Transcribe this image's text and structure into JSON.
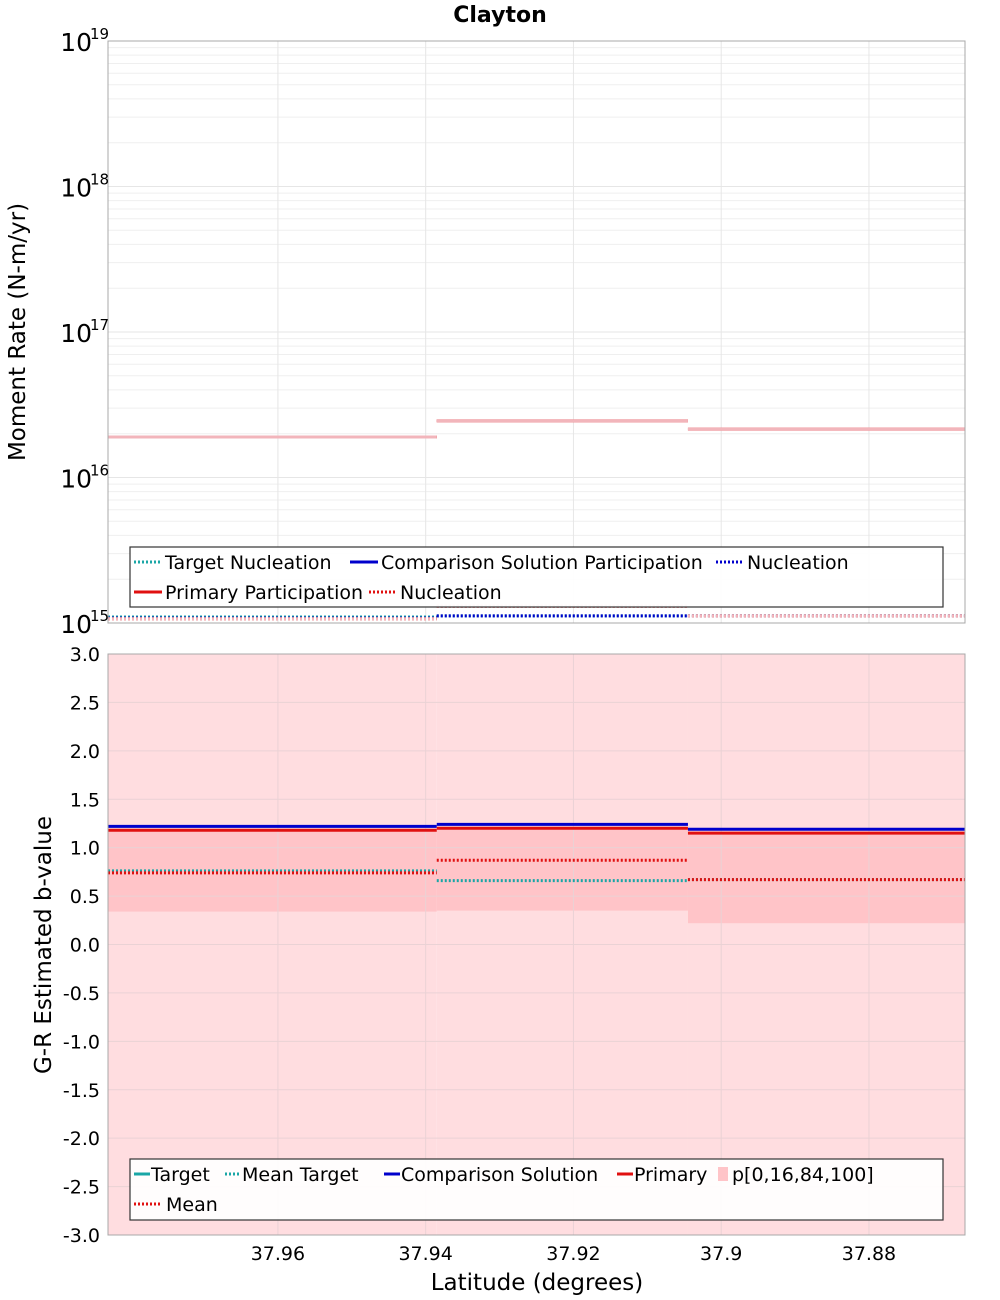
{
  "title": "Clayton",
  "colors": {
    "target": "#1aa6a6",
    "comparison": "#0000cc",
    "primary": "#e01010",
    "primary_light": "#f2b5bb",
    "band_outer": "#ffdde0",
    "band_inner": "#ffc4c8",
    "grid": "#e6e6e6",
    "frame": "#a8a8a8"
  },
  "chart_data": [
    {
      "type": "line",
      "panel": "top",
      "drawstyle": "steps",
      "title": "Clayton",
      "ylabel": "Moment Rate (N-m/yr)",
      "yscale": "log",
      "ylim": [
        1000000000000000.0,
        1e+19
      ],
      "xlim": [
        37.983,
        37.867
      ],
      "x_inverted": true,
      "y_ticks": [
        {
          "base": "10",
          "exp": "15",
          "value": 1000000000000000.0
        },
        {
          "base": "10",
          "exp": "16",
          "value": 1e+16
        },
        {
          "base": "10",
          "exp": "17",
          "value": 1e+17
        },
        {
          "base": "10",
          "exp": "18",
          "value": 1e+18
        },
        {
          "base": "10",
          "exp": "19",
          "value": 1e+19
        }
      ],
      "grid": true,
      "legend": {
        "position": "bottom",
        "rows": [
          [
            {
              "label": "Target Nucleation",
              "style": "target-dotted"
            },
            {
              "label": "Comparison Solution Participation",
              "style": "comparison-solid"
            },
            {
              "label": "Nucleation",
              "style": "comparison-dotted"
            }
          ],
          [
            {
              "label": "Primary Participation",
              "style": "primary-solid"
            },
            {
              "label": "Nucleation",
              "style": "primary-dotted"
            }
          ]
        ]
      },
      "bins": [
        [
          37.983,
          37.9385
        ],
        [
          37.9385,
          37.9045
        ],
        [
          37.9045,
          37.867
        ]
      ],
      "series": [
        {
          "name": "Primary Participation",
          "style": "primary-solid",
          "values": [
            1.9e+16,
            2.45e+16,
            2.15e+16
          ]
        },
        {
          "name": "Primary Participation (comparison)",
          "style": "primary-light-solid",
          "values": [
            1.9e+16,
            2.45e+16,
            2.15e+16
          ]
        },
        {
          "name": "Target Nucleation",
          "style": "target-dotted",
          "values": [
            1100000000000000.0,
            1120000000000000.0,
            1120000000000000.0
          ]
        },
        {
          "name": "Comparison Nucleation",
          "style": "comparison-dotted",
          "values": [
            1080000000000000.0,
            1120000000000000.0,
            1120000000000000.0
          ]
        },
        {
          "name": "Nucleation",
          "style": "primary-dotted",
          "values": [
            1070000000000000.0,
            1300000000000000.0,
            1120000000000000.0
          ]
        },
        {
          "name": "Nucleation (comparison)",
          "style": "primary-light-dotted",
          "values": [
            1070000000000000.0,
            1300000000000000.0,
            1120000000000000.0
          ]
        }
      ]
    },
    {
      "type": "line",
      "panel": "bottom",
      "drawstyle": "steps",
      "xlabel": "Latitude (degrees)",
      "ylabel": "G-R Estimated b-value",
      "ylim": [
        -3.0,
        3.0
      ],
      "xlim": [
        37.983,
        37.867
      ],
      "x_inverted": true,
      "y_ticks": [
        {
          "label": "3.0",
          "value": 3.0
        },
        {
          "label": "2.5",
          "value": 2.5
        },
        {
          "label": "2.0",
          "value": 2.0
        },
        {
          "label": "1.5",
          "value": 1.5
        },
        {
          "label": "1.0",
          "value": 1.0
        },
        {
          "label": "0.5",
          "value": 0.5
        },
        {
          "label": "0.0",
          "value": 0.0
        },
        {
          "label": "-0.5",
          "value": -0.5
        },
        {
          "label": "-1.0",
          "value": -1.0
        },
        {
          "label": "-1.5",
          "value": -1.5
        },
        {
          "label": "-2.0",
          "value": -2.0
        },
        {
          "label": "-2.5",
          "value": -2.5
        },
        {
          "label": "-3.0",
          "value": -3.0
        }
      ],
      "x_ticks": [
        {
          "label": "37.96",
          "value": 37.96
        },
        {
          "label": "37.94",
          "value": 37.94
        },
        {
          "label": "37.92",
          "value": 37.92
        },
        {
          "label": "37.9",
          "value": 37.9
        },
        {
          "label": "37.88",
          "value": 37.88
        }
      ],
      "grid": true,
      "legend": {
        "position": "bottom",
        "rows": [
          [
            {
              "label": "Target",
              "style": "target-solid"
            },
            {
              "label": "Mean Target",
              "style": "target-dotted"
            },
            {
              "label": "Comparison Solution",
              "style": "comparison-solid"
            },
            {
              "label": "Primary",
              "style": "primary-solid"
            },
            {
              "label": "p[0,16,84,100]",
              "style": "band-patch"
            }
          ],
          [
            {
              "label": "Mean",
              "style": "primary-dotted"
            }
          ]
        ]
      },
      "bins": [
        [
          37.983,
          37.9385
        ],
        [
          37.9385,
          37.9045
        ],
        [
          37.9045,
          37.867
        ]
      ],
      "bands": [
        {
          "name": "p0-p100",
          "style": "band-outer",
          "low": [
            -3.0,
            -3.0,
            -3.0
          ],
          "high": [
            3.0,
            3.0,
            3.0
          ]
        },
        {
          "name": "p16-p84",
          "style": "band-inner",
          "low": [
            0.34,
            0.35,
            0.22
          ],
          "high": [
            1.18,
            1.2,
            1.14
          ]
        }
      ],
      "series": [
        {
          "name": "Comparison Solution",
          "style": "comparison-solid",
          "values": [
            1.22,
            1.24,
            1.19
          ]
        },
        {
          "name": "Primary",
          "style": "primary-solid",
          "values": [
            1.18,
            1.2,
            1.15
          ]
        },
        {
          "name": "Mean Target",
          "style": "target-dotted",
          "values": [
            0.76,
            0.66,
            0.67
          ]
        },
        {
          "name": "Mean",
          "style": "primary-dotted",
          "values": [
            0.74,
            0.87,
            0.67
          ]
        }
      ]
    }
  ]
}
